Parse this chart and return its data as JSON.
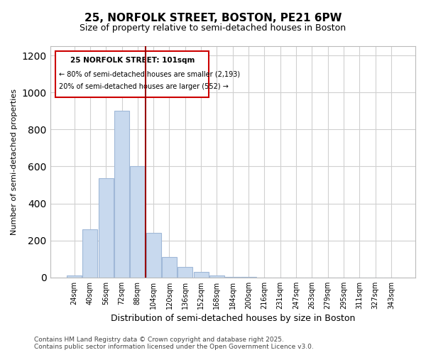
{
  "title_line1": "25, NORFOLK STREET, BOSTON, PE21 6PW",
  "title_line2": "Size of property relative to semi-detached houses in Boston",
  "xlabel": "Distribution of semi-detached houses by size in Boston",
  "ylabel": "Number of semi-detached properties",
  "categories": [
    "24sqm",
    "40sqm",
    "56sqm",
    "72sqm",
    "88sqm",
    "104sqm",
    "120sqm",
    "136sqm",
    "152sqm",
    "168sqm",
    "184sqm",
    "200sqm",
    "216sqm",
    "231sqm",
    "247sqm",
    "263sqm",
    "279sqm",
    "295sqm",
    "311sqm",
    "327sqm",
    "343sqm"
  ],
  "bar_heights": [
    10,
    262,
    535,
    900,
    600,
    240,
    110,
    55,
    30,
    12,
    5,
    2,
    0,
    0,
    0,
    0,
    0,
    0,
    0,
    0,
    0
  ],
  "bar_color": "#c8d9ee",
  "bar_edge_color": "#a0b8d8",
  "vline_color": "#990000",
  "annotation_title": "25 NORFOLK STREET: 101sqm",
  "annotation_line1": "← 80% of semi-detached houses are smaller (2,193)",
  "annotation_line2": "20% of semi-detached houses are larger (552) →",
  "annotation_box_color": "#ffffff",
  "annotation_border_color": "#cc0000",
  "ylim": [
    0,
    1250
  ],
  "yticks": [
    0,
    200,
    400,
    600,
    800,
    1000,
    1200
  ],
  "footer_line1": "Contains HM Land Registry data © Crown copyright and database right 2025.",
  "footer_line2": "Contains public sector information licensed under the Open Government Licence v3.0.",
  "bg_color": "#ffffff",
  "grid_color": "#d0d0d0"
}
